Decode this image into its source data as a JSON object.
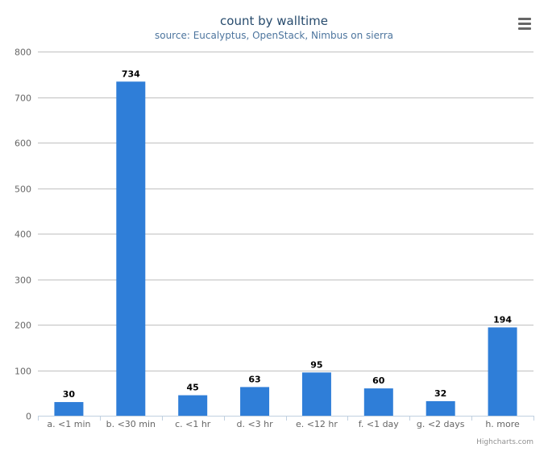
{
  "chart_data": {
    "type": "bar",
    "title": "count by walltime",
    "subtitle": "source: Eucalyptus, OpenStack, Nimbus on sierra",
    "categories": [
      "a. <1 min",
      "b. <30 min",
      "c. <1 hr",
      "d. <3 hr",
      "e. <12 hr",
      "f. <1 day",
      "g. <2 days",
      "h. more"
    ],
    "values": [
      30,
      734,
      45,
      63,
      95,
      60,
      32,
      194
    ],
    "ylim": [
      0,
      800
    ],
    "yticks": [
      0,
      100,
      200,
      300,
      400,
      500,
      600,
      700,
      800
    ],
    "grid": true,
    "legend": "none",
    "bar_color": "#2f7ed8"
  },
  "credits": "Highcharts.com",
  "menu_icon": "hamburger-menu-icon"
}
